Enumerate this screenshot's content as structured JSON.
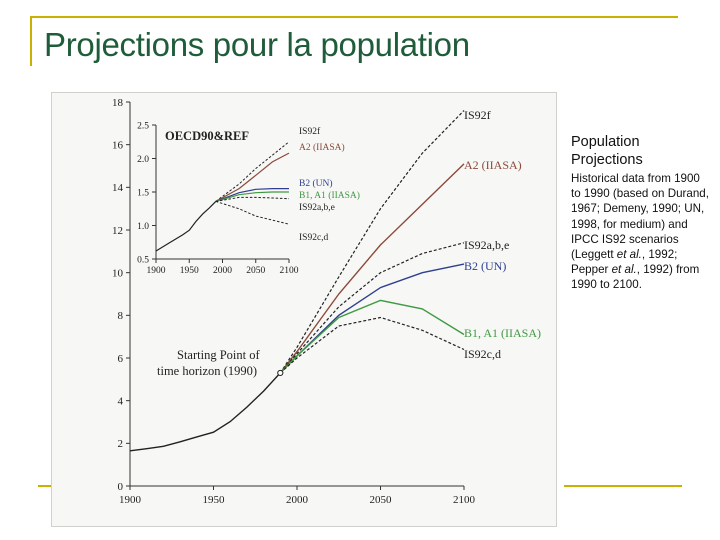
{
  "slide": {
    "title": "Projections pour la population"
  },
  "sidebar": {
    "heading": "Population Projections",
    "body_parts": [
      "Historical data from 1900 to 1990 (based on Durand, 1967; Demeny, 1990; UN, 1998, for medium) and IPCC IS92 scenarios (Leggett ",
      "et al.",
      ", 1992; Pepper ",
      "et al.",
      ", 1992) from 1990 to 2100."
    ]
  },
  "colors": {
    "title": "#1f5c3a",
    "accent": "#c9b100",
    "ink": "#222222",
    "scenario_brown": "#8b4a3a",
    "scenario_blue": "#2e3f8f",
    "scenario_green": "#3f9a43"
  },
  "chart_data": [
    {
      "id": "main",
      "type": "line",
      "xlim": [
        1900,
        2100
      ],
      "ylim": [
        0,
        18
      ],
      "xticks": [
        1900,
        1950,
        2000,
        2050,
        2100
      ],
      "yticks": [
        0,
        2,
        4,
        6,
        8,
        10,
        12,
        14,
        16,
        18
      ],
      "annotation": [
        "Starting Point of",
        "time horizon (1990)"
      ],
      "series": [
        {
          "name": "Historical",
          "color": "#222222",
          "dash": "solid",
          "x": [
            1900,
            1910,
            1920,
            1930,
            1940,
            1950,
            1960,
            1970,
            1980,
            1990
          ],
          "y": [
            1.65,
            1.75,
            1.86,
            2.07,
            2.3,
            2.52,
            3.02,
            3.7,
            4.45,
            5.3
          ]
        },
        {
          "name": "IS92f",
          "label": "IS92f",
          "color": "#222222",
          "dash": "dash",
          "x": [
            1990,
            2000,
            2025,
            2050,
            2075,
            2100
          ],
          "y": [
            5.3,
            6.5,
            9.8,
            13.0,
            15.6,
            17.6
          ]
        },
        {
          "name": "A2 (IIASA)",
          "label": "A2 (IIASA)",
          "color": "#8b4a3a",
          "dash": "solid",
          "x": [
            1990,
            2000,
            2025,
            2050,
            2075,
            2100
          ],
          "y": [
            5.3,
            6.3,
            9.0,
            11.3,
            13.2,
            15.1
          ]
        },
        {
          "name": "IS92a,b,e",
          "label": "IS92a,b,e",
          "color": "#222222",
          "dash": "dash",
          "x": [
            1990,
            2000,
            2025,
            2050,
            2075,
            2100
          ],
          "y": [
            5.3,
            6.2,
            8.4,
            10.0,
            10.9,
            11.4
          ]
        },
        {
          "name": "B2 (UN)",
          "label": "B2 (UN)",
          "color": "#2e3f8f",
          "dash": "solid",
          "x": [
            1990,
            2000,
            2025,
            2050,
            2075,
            2100
          ],
          "y": [
            5.3,
            6.1,
            8.0,
            9.3,
            10.0,
            10.4
          ]
        },
        {
          "name": "B1, A1 (IIASA)",
          "label": "B1, A1 (IIASA)",
          "color": "#3f9a43",
          "dash": "solid",
          "x": [
            1990,
            2000,
            2025,
            2050,
            2075,
            2100
          ],
          "y": [
            5.3,
            6.1,
            7.9,
            8.7,
            8.3,
            7.1
          ]
        },
        {
          "name": "IS92c,d",
          "label": "IS92c,d",
          "color": "#222222",
          "dash": "dash",
          "x": [
            1990,
            2000,
            2025,
            2050,
            2075,
            2100
          ],
          "y": [
            5.3,
            6.0,
            7.5,
            7.9,
            7.3,
            6.4
          ]
        }
      ]
    },
    {
      "id": "inset",
      "type": "line",
      "title": "OECD90&REF",
      "xlim": [
        1900,
        2100
      ],
      "ylim": [
        0.5,
        2.5
      ],
      "xticks": [
        1900,
        1950,
        2000,
        2050,
        2100
      ],
      "yticks": [
        0.5,
        1.0,
        1.5,
        2.0,
        2.5
      ],
      "ytick_labels": [
        "0.5",
        "1.0",
        "1.5",
        "2.0",
        "2.5"
      ],
      "series": [
        {
          "name": "Historical",
          "color": "#222222",
          "dash": "solid",
          "x": [
            1900,
            1920,
            1940,
            1950,
            1960,
            1970,
            1980,
            1990
          ],
          "y": [
            0.62,
            0.74,
            0.86,
            0.93,
            1.06,
            1.17,
            1.26,
            1.36
          ]
        },
        {
          "name": "IS92f",
          "label": "IS92f",
          "color": "#222222",
          "dash": "dash",
          "x": [
            1990,
            2025,
            2050,
            2075,
            2100
          ],
          "y": [
            1.36,
            1.62,
            1.85,
            2.05,
            2.25
          ]
        },
        {
          "name": "A2 (IIASA)",
          "label": "A2 (IIASA)",
          "color": "#8b4a3a",
          "dash": "solid",
          "x": [
            1990,
            2025,
            2050,
            2075,
            2100
          ],
          "y": [
            1.36,
            1.55,
            1.75,
            1.95,
            2.08
          ]
        },
        {
          "name": "B2 (UN)",
          "label": "B2 (UN)",
          "color": "#2e3f8f",
          "dash": "solid",
          "x": [
            1990,
            2025,
            2050,
            2075,
            2100
          ],
          "y": [
            1.36,
            1.49,
            1.54,
            1.55,
            1.55
          ]
        },
        {
          "name": "B1, A1 (IIASA)",
          "label": "B1, A1 (IIASA)",
          "color": "#3f9a43",
          "dash": "solid",
          "x": [
            1990,
            2025,
            2050,
            2075,
            2100
          ],
          "y": [
            1.36,
            1.46,
            1.49,
            1.5,
            1.5
          ]
        },
        {
          "name": "IS92a,b,e",
          "label": "IS92a,b,e",
          "color": "#222222",
          "dash": "dash",
          "x": [
            1990,
            2025,
            2050,
            2075,
            2100
          ],
          "y": [
            1.36,
            1.42,
            1.42,
            1.41,
            1.4
          ]
        },
        {
          "name": "IS92c,d",
          "label": "IS92c,d",
          "color": "#222222",
          "dash": "dash",
          "x": [
            1990,
            2025,
            2050,
            2075,
            2100
          ],
          "y": [
            1.36,
            1.25,
            1.14,
            1.08,
            1.02
          ]
        }
      ]
    }
  ]
}
